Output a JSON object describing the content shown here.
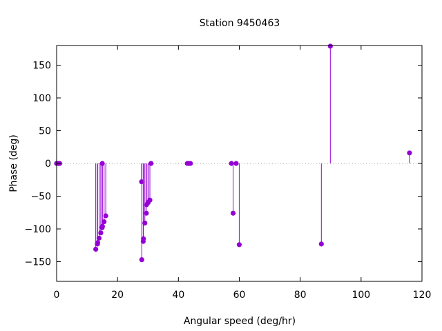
{
  "chart_data": {
    "type": "scatter",
    "title": "Station 9450463",
    "xlabel": "Angular speed (deg/hr)",
    "ylabel": "Phase (deg)",
    "xlim": [
      0,
      120
    ],
    "ylim": [
      -180,
      180
    ],
    "xticks": [
      0,
      20,
      40,
      60,
      80,
      100,
      120
    ],
    "yticks": [
      -150,
      -100,
      -50,
      0,
      50,
      100,
      150
    ],
    "grid": false,
    "zero_line": true,
    "style": "impulses with points",
    "colors": {
      "series": "#9400d3",
      "zero_line": "#a0a0a0",
      "axes": "#000000"
    },
    "series": [
      {
        "points": [
          [
            0.0,
            0
          ],
          [
            0.04,
            0
          ],
          [
            0.08,
            0
          ],
          [
            0.5,
            0
          ],
          [
            1.0,
            0
          ],
          [
            12.85,
            -131
          ],
          [
            13.4,
            -123
          ],
          [
            13.47,
            -121
          ],
          [
            13.94,
            -114
          ],
          [
            14.5,
            -106
          ],
          [
            14.96,
            -98
          ],
          [
            15.0,
            0
          ],
          [
            15.04,
            -96
          ],
          [
            15.59,
            -89
          ],
          [
            16.14,
            -80
          ],
          [
            27.9,
            -28
          ],
          [
            27.97,
            -147
          ],
          [
            28.44,
            -119
          ],
          [
            28.51,
            -115
          ],
          [
            28.98,
            -91
          ],
          [
            29.46,
            -76
          ],
          [
            29.53,
            -63
          ],
          [
            30.0,
            -60
          ],
          [
            30.08,
            -59
          ],
          [
            30.63,
            -56
          ],
          [
            31.02,
            0
          ],
          [
            42.93,
            0
          ],
          [
            43.48,
            0
          ],
          [
            43.94,
            0
          ],
          [
            57.42,
            0
          ],
          [
            57.97,
            -76
          ],
          [
            58.98,
            0
          ],
          [
            59.98,
            -124
          ],
          [
            86.95,
            -123
          ],
          [
            89.9,
            179
          ],
          [
            115.9,
            16
          ]
        ]
      }
    ]
  }
}
